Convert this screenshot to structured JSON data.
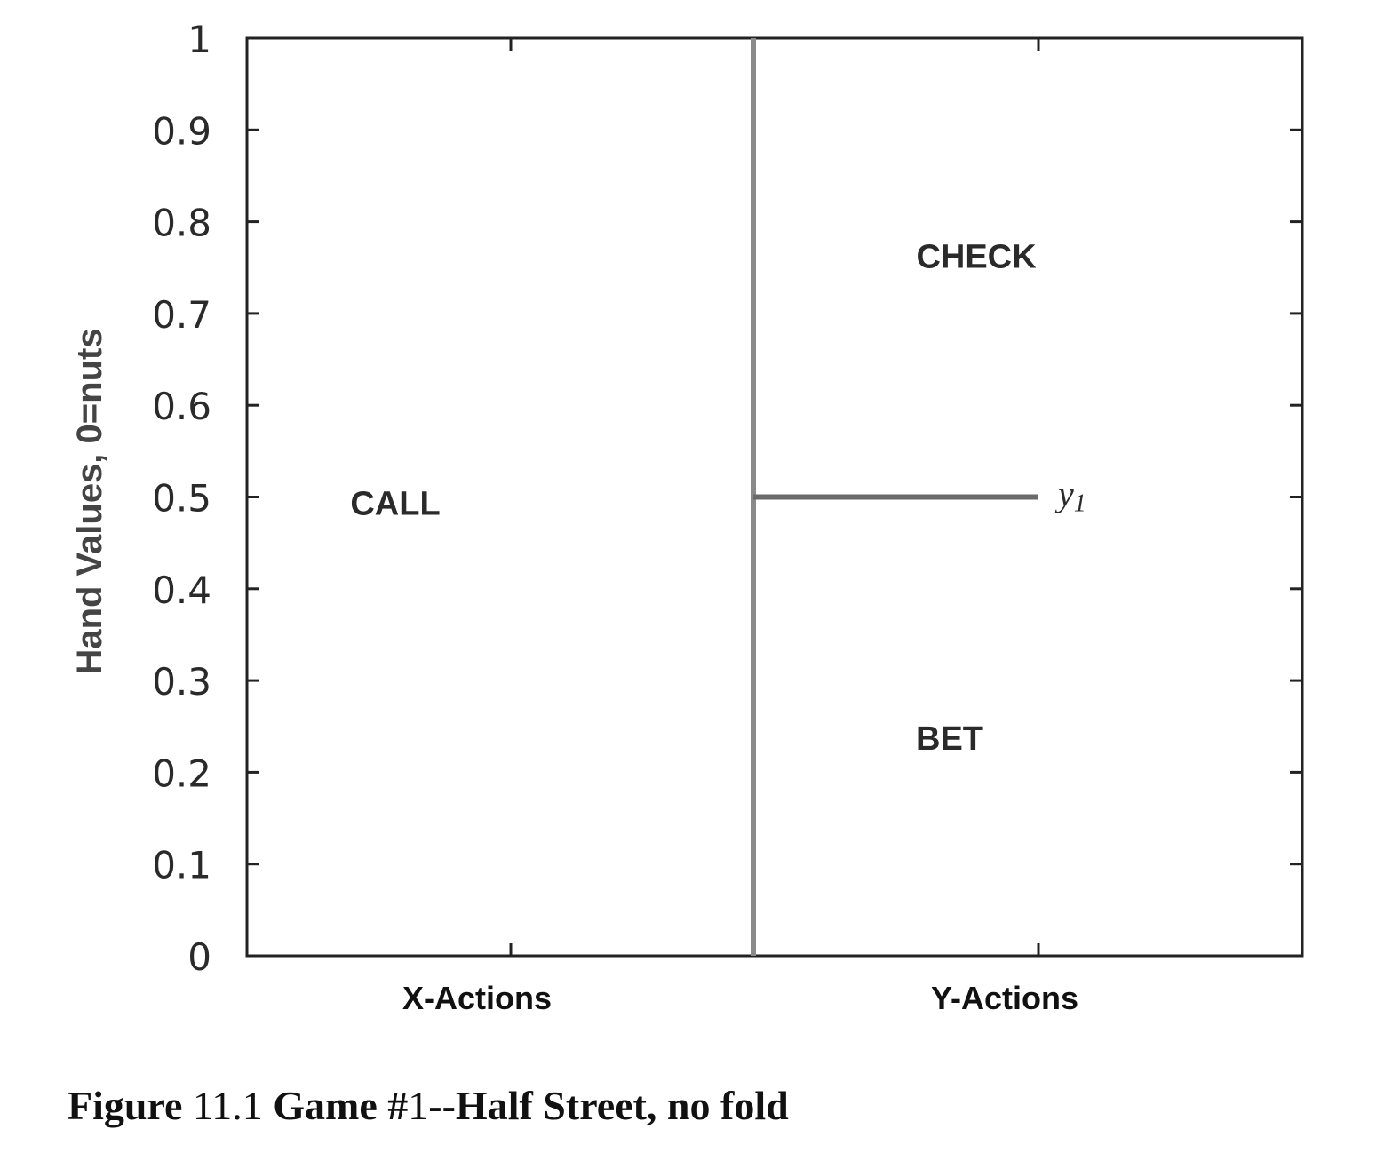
{
  "chart_data": {
    "type": "region",
    "ylabel": "Hand Values, 0=nuts",
    "ylim": [
      0,
      1
    ],
    "yticks": [
      "0",
      "0.1",
      "0.2",
      "0.3",
      "0.4",
      "0.5",
      "0.6",
      "0.7",
      "0.8",
      "0.9",
      "1"
    ],
    "categories": [
      "X-Actions",
      "Y-Actions"
    ],
    "columns": [
      {
        "name": "X-Actions",
        "regions": [
          {
            "label": "CALL",
            "from": 0,
            "to": 1
          }
        ]
      },
      {
        "name": "Y-Actions",
        "regions": [
          {
            "label": "BET",
            "from": 0,
            "to": 0.5
          },
          {
            "label": "CHECK",
            "from": 0.5,
            "to": 1
          }
        ],
        "thresholds": [
          {
            "label": "y1",
            "value": 0.5
          }
        ]
      }
    ],
    "grid": false
  },
  "caption": {
    "figure_word": "Figure",
    "number": "11.1",
    "title_a": "Game #",
    "title_num": "1",
    "title_b": "--Half Street, no fold"
  },
  "colors": {
    "axis": "#222222",
    "divider": "#8a8a8a",
    "text": "#2a2a2a"
  }
}
